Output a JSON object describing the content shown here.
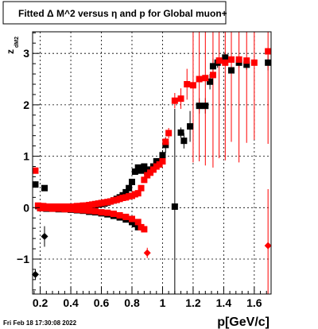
{
  "chart_data": {
    "type": "scatter",
    "title": "Fitted Δ M^2 versus η and p for Global muon+",
    "xlabel": "p[GeV/c]",
    "ylabel": "z",
    "ylabel_sub": "dM2",
    "xlim": [
      0.15,
      1.71
    ],
    "ylim": [
      -1.68,
      3.42
    ],
    "xticks": [
      0.2,
      0.4,
      0.6,
      0.8,
      1.0,
      1.2,
      1.4,
      1.6
    ],
    "xtick_labels": [
      "0.2",
      "0.4",
      "0.6",
      "0.8",
      "1",
      "1.2",
      "1.4",
      "1.6"
    ],
    "yticks": [
      -1,
      0,
      1,
      2,
      3
    ],
    "ytick_labels": [
      "−1",
      "0",
      "1",
      "2",
      "3"
    ],
    "grid": true,
    "timestamp": "Fri Feb 18 17:30:08 2022",
    "colors": {
      "black_series": "#000000",
      "red_series": "#ff0000",
      "grid": "#000000"
    },
    "series": [
      {
        "color": "black",
        "marker": "square",
        "points": [
          [
            0.168,
            0.45,
            0.06
          ],
          [
            0.228,
            0.38,
            0.05
          ],
          [
            0.186,
            0.03,
            0.02
          ],
          [
            0.2,
            0.02,
            0.01
          ],
          [
            0.22,
            0.02,
            0.01
          ],
          [
            0.24,
            0.01,
            0.01
          ],
          [
            0.26,
            0.01,
            0.01
          ],
          [
            0.28,
            0.01,
            0.01
          ],
          [
            0.3,
            0.01,
            0.01
          ],
          [
            0.32,
            0.01,
            0.01
          ],
          [
            0.34,
            0.01,
            0.01
          ],
          [
            0.36,
            0.01,
            0.01
          ],
          [
            0.38,
            0.01,
            0.01
          ],
          [
            0.4,
            0.01,
            0.01
          ],
          [
            0.42,
            0.01,
            0.01
          ],
          [
            0.44,
            0.02,
            0.01
          ],
          [
            0.46,
            0.02,
            0.01
          ],
          [
            0.48,
            0.02,
            0.01
          ],
          [
            0.5,
            0.03,
            0.01
          ],
          [
            0.52,
            0.03,
            0.01
          ],
          [
            0.54,
            0.04,
            0.01
          ],
          [
            0.56,
            0.05,
            0.01
          ],
          [
            0.58,
            0.06,
            0.01
          ],
          [
            0.6,
            0.07,
            0.01
          ],
          [
            0.62,
            0.08,
            0.01
          ],
          [
            0.64,
            0.1,
            0.01
          ],
          [
            0.66,
            0.12,
            0.01
          ],
          [
            0.68,
            0.14,
            0.01
          ],
          [
            0.7,
            0.17,
            0.01
          ],
          [
            0.72,
            0.2,
            0.01
          ],
          [
            0.74,
            0.24,
            0.02
          ],
          [
            0.76,
            0.3,
            0.02
          ],
          [
            0.78,
            0.38,
            0.02
          ],
          [
            0.8,
            0.5,
            0.03
          ],
          [
            0.82,
            0.7,
            0.03
          ],
          [
            0.84,
            0.78,
            0.04
          ],
          [
            0.86,
            0.72,
            0.04
          ],
          [
            0.88,
            0.8,
            0.04
          ],
          [
            0.9,
            0.7,
            0.05
          ],
          [
            0.92,
            0.74,
            0.05
          ],
          [
            0.94,
            0.8,
            0.05
          ],
          [
            0.96,
            0.9,
            0.06
          ],
          [
            0.98,
            0.9,
            0.06
          ],
          [
            1.0,
            1.02,
            0.1
          ],
          [
            1.02,
            1.22,
            0.15
          ],
          [
            1.08,
            0.02,
            1.9
          ],
          [
            1.12,
            1.46,
            0.1
          ],
          [
            1.14,
            1.3,
            0.15
          ],
          [
            1.18,
            1.58,
            0.3
          ],
          [
            1.24,
            1.98,
            0.15
          ],
          [
            1.28,
            1.98,
            0.15
          ],
          [
            1.31,
            2.45,
            0.15
          ],
          [
            1.33,
            2.75,
            0.15
          ],
          [
            1.36,
            2.82,
            0.1
          ],
          [
            1.41,
            2.92,
            0.1
          ],
          [
            1.45,
            2.67,
            0.1
          ],
          [
            1.5,
            2.82,
            0.1
          ],
          [
            1.55,
            2.78,
            0.1
          ],
          [
            1.69,
            2.82,
            0.15
          ],
          [
            0.2,
            -0.01,
            0.01
          ],
          [
            0.24,
            -0.02,
            0.01
          ],
          [
            0.28,
            -0.02,
            0.01
          ],
          [
            0.32,
            -0.03,
            0.01
          ],
          [
            0.36,
            -0.03,
            0.01
          ],
          [
            0.4,
            -0.04,
            0.01
          ],
          [
            0.44,
            -0.05,
            0.01
          ],
          [
            0.48,
            -0.06,
            0.01
          ],
          [
            0.52,
            -0.08,
            0.01
          ],
          [
            0.56,
            -0.09,
            0.01
          ],
          [
            0.6,
            -0.11,
            0.01
          ],
          [
            0.64,
            -0.13,
            0.01
          ],
          [
            0.68,
            -0.16,
            0.01
          ],
          [
            0.72,
            -0.19,
            0.02
          ],
          [
            0.76,
            -0.23,
            0.02
          ],
          [
            0.8,
            -0.28,
            0.02
          ],
          [
            0.82,
            -0.32,
            0.03
          ],
          [
            0.84,
            -0.38,
            0.03
          ]
        ]
      },
      {
        "color": "black",
        "marker": "diamond",
        "points": [
          [
            0.168,
            -1.3,
            0.1
          ],
          [
            0.228,
            -0.56,
            0.2
          ]
        ]
      },
      {
        "color": "red",
        "marker": "square",
        "points": [
          [
            0.168,
            0.72,
            0.06
          ],
          [
            0.186,
            0.04,
            0.02
          ],
          [
            0.2,
            0.03,
            0.01
          ],
          [
            0.22,
            0.03,
            0.01
          ],
          [
            0.24,
            0.02,
            0.01
          ],
          [
            0.26,
            0.02,
            0.01
          ],
          [
            0.28,
            0.02,
            0.01
          ],
          [
            0.3,
            0.02,
            0.01
          ],
          [
            0.32,
            0.02,
            0.01
          ],
          [
            0.34,
            0.02,
            0.01
          ],
          [
            0.36,
            0.02,
            0.01
          ],
          [
            0.38,
            0.02,
            0.01
          ],
          [
            0.4,
            0.02,
            0.01
          ],
          [
            0.42,
            0.02,
            0.01
          ],
          [
            0.44,
            0.03,
            0.01
          ],
          [
            0.46,
            0.03,
            0.01
          ],
          [
            0.48,
            0.04,
            0.01
          ],
          [
            0.5,
            0.04,
            0.01
          ],
          [
            0.52,
            0.05,
            0.01
          ],
          [
            0.54,
            0.06,
            0.01
          ],
          [
            0.56,
            0.07,
            0.01
          ],
          [
            0.58,
            0.08,
            0.01
          ],
          [
            0.6,
            0.09,
            0.01
          ],
          [
            0.62,
            0.1,
            0.01
          ],
          [
            0.64,
            0.11,
            0.01
          ],
          [
            0.66,
            0.12,
            0.01
          ],
          [
            0.68,
            0.14,
            0.01
          ],
          [
            0.7,
            0.15,
            0.01
          ],
          [
            0.72,
            0.17,
            0.01
          ],
          [
            0.74,
            0.19,
            0.01
          ],
          [
            0.76,
            0.2,
            0.01
          ],
          [
            0.78,
            0.22,
            0.01
          ],
          [
            0.8,
            0.23,
            0.02
          ],
          [
            0.82,
            0.26,
            0.02
          ],
          [
            0.84,
            0.28,
            0.02
          ],
          [
            0.86,
            0.38,
            0.03
          ],
          [
            0.88,
            0.54,
            0.03
          ],
          [
            0.9,
            0.63,
            0.03
          ],
          [
            0.92,
            0.68,
            0.04
          ],
          [
            0.94,
            0.74,
            0.04
          ],
          [
            0.96,
            0.8,
            0.04
          ],
          [
            0.98,
            0.84,
            0.05
          ],
          [
            1.0,
            0.9,
            0.05
          ],
          [
            1.02,
            1.28,
            0.08
          ],
          [
            1.04,
            1.45,
            0.1
          ],
          [
            1.08,
            2.08,
            0.15
          ],
          [
            1.12,
            2.12,
            0.2
          ],
          [
            1.16,
            2.4,
            0.3
          ],
          [
            1.2,
            2.38,
            1.5
          ],
          [
            1.24,
            2.5,
            1.6
          ],
          [
            1.28,
            2.52,
            1.7
          ],
          [
            1.33,
            2.58,
            1.8
          ],
          [
            1.37,
            2.86,
            1.9
          ],
          [
            1.41,
            2.82,
            1.9
          ],
          [
            1.45,
            2.88,
            1.6
          ],
          [
            1.5,
            2.88,
            2.0
          ],
          [
            1.55,
            2.86,
            1.6
          ],
          [
            1.6,
            2.82,
            1.5
          ],
          [
            1.69,
            3.04,
            1.8
          ],
          [
            0.2,
            -0.01,
            0.01
          ],
          [
            0.24,
            -0.01,
            0.01
          ],
          [
            0.28,
            -0.02,
            0.01
          ],
          [
            0.32,
            -0.02,
            0.01
          ],
          [
            0.36,
            -0.03,
            0.01
          ],
          [
            0.4,
            -0.03,
            0.01
          ],
          [
            0.44,
            -0.04,
            0.01
          ],
          [
            0.48,
            -0.05,
            0.01
          ],
          [
            0.52,
            -0.06,
            0.01
          ],
          [
            0.56,
            -0.07,
            0.01
          ],
          [
            0.6,
            -0.09,
            0.01
          ],
          [
            0.64,
            -0.1,
            0.01
          ],
          [
            0.68,
            -0.12,
            0.01
          ],
          [
            0.72,
            -0.15,
            0.02
          ],
          [
            0.76,
            -0.18,
            0.02
          ],
          [
            0.8,
            -0.22,
            0.02
          ],
          [
            0.84,
            -0.28,
            0.03
          ],
          [
            0.86,
            -0.38,
            0.03
          ],
          [
            0.88,
            -0.42,
            0.03
          ]
        ]
      },
      {
        "color": "red",
        "marker": "diamond",
        "points": [
          [
            0.9,
            -0.88,
            0.1
          ],
          [
            1.69,
            -0.74,
            1.1
          ]
        ]
      }
    ]
  }
}
